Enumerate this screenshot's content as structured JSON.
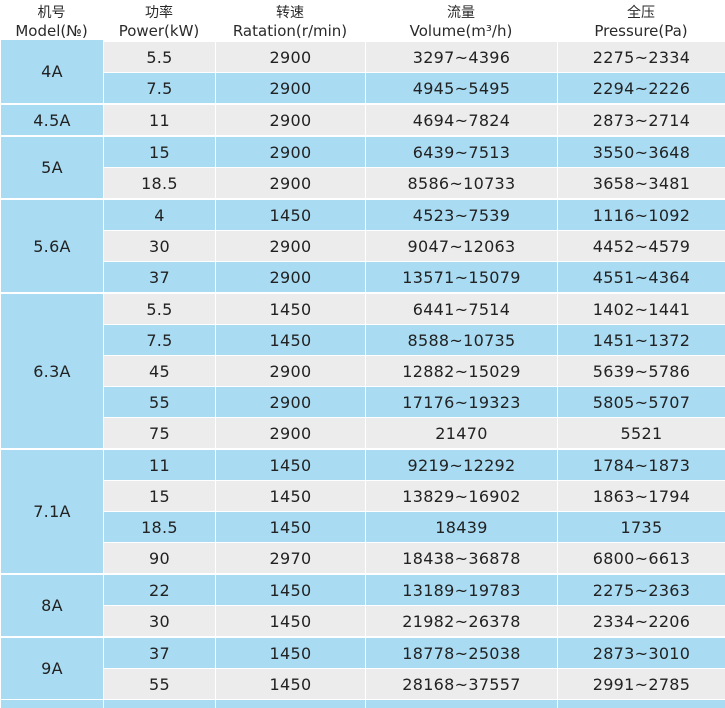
{
  "headers": [
    {
      "zh": "机号",
      "en": "Model(№)"
    },
    {
      "zh": "功率",
      "en": "Power(kW)"
    },
    {
      "zh": "转速",
      "en": "Ratation(r/min)"
    },
    {
      "zh": "流量",
      "en": "Volume(m³/h)"
    },
    {
      "zh": "全压",
      "en": "Pressure(Pa)"
    }
  ],
  "groups": [
    {
      "model": "4A",
      "rows": [
        {
          "power": "5.5",
          "speed": "2900",
          "volume": "3297~4396",
          "pressure": "2275~2334"
        },
        {
          "power": "7.5",
          "speed": "2900",
          "volume": "4945~5495",
          "pressure": "2294~2226"
        }
      ]
    },
    {
      "model": "4.5A",
      "rows": [
        {
          "power": "11",
          "speed": "2900",
          "volume": "4694~7824",
          "pressure": "2873~2714"
        }
      ]
    },
    {
      "model": "5A",
      "rows": [
        {
          "power": "15",
          "speed": "2900",
          "volume": "6439~7513",
          "pressure": "3550~3648"
        },
        {
          "power": "18.5",
          "speed": "2900",
          "volume": "8586~10733",
          "pressure": "3658~3481"
        }
      ]
    },
    {
      "model": "5.6A",
      "rows": [
        {
          "power": "4",
          "speed": "1450",
          "volume": "4523~7539",
          "pressure": "1116~1092"
        },
        {
          "power": "30",
          "speed": "2900",
          "volume": "9047~12063",
          "pressure": "4452~4579"
        },
        {
          "power": "37",
          "speed": "2900",
          "volume": "13571~15079",
          "pressure": "4551~4364"
        }
      ]
    },
    {
      "model": "6.3A",
      "rows": [
        {
          "power": "5.5",
          "speed": "1450",
          "volume": "6441~7514",
          "pressure": "1402~1441"
        },
        {
          "power": "7.5",
          "speed": "1450",
          "volume": "8588~10735",
          "pressure": "1451~1372"
        },
        {
          "power": "45",
          "speed": "2900",
          "volume": "12882~15029",
          "pressure": "5639~5786"
        },
        {
          "power": "55",
          "speed": "2900",
          "volume": "17176~19323",
          "pressure": "5805~5707"
        },
        {
          "power": "75",
          "speed": "2900",
          "volume": "21470",
          "pressure": "5521"
        }
      ]
    },
    {
      "model": "7.1A",
      "rows": [
        {
          "power": "11",
          "speed": "1450",
          "volume": "9219~12292",
          "pressure": "1784~1873"
        },
        {
          "power": "15",
          "speed": "1450",
          "volume": "13829~16902",
          "pressure": "1863~1794"
        },
        {
          "power": "18.5",
          "speed": "1450",
          "volume": "18439",
          "pressure": "1735"
        },
        {
          "power": "90",
          "speed": "2970",
          "volume": "18438~36878",
          "pressure": "6800~6613"
        }
      ]
    },
    {
      "model": "8A",
      "rows": [
        {
          "power": "22",
          "speed": "1450",
          "volume": "13189~19783",
          "pressure": "2275~2363"
        },
        {
          "power": "30",
          "speed": "1450",
          "volume": "21982~26378",
          "pressure": "2334~2206"
        }
      ]
    },
    {
      "model": "9A",
      "rows": [
        {
          "power": "37",
          "speed": "1450",
          "volume": "18778~25038",
          "pressure": "2873~3010"
        },
        {
          "power": "55",
          "speed": "1450",
          "volume": "28168~37557",
          "pressure": "2991~2785"
        }
      ]
    }
  ],
  "colors": {
    "blue": "#a9dbf2",
    "gray": "#ececec"
  }
}
